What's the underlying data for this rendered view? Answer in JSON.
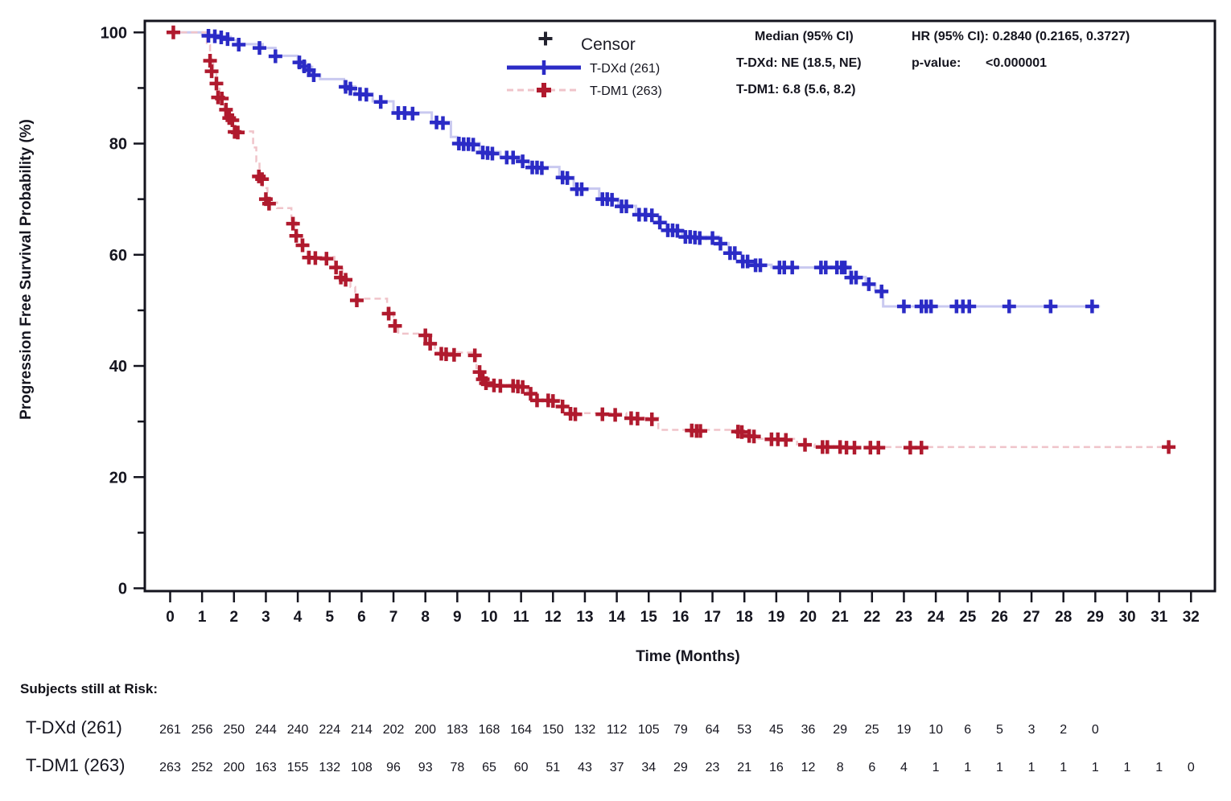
{
  "chart_data": {
    "type": "line",
    "subtype": "kaplan-meier-step",
    "xlabel": "Time (Months)",
    "ylabel": "Progression Free Survival Probability (%)",
    "xlim": [
      0,
      32
    ],
    "ylim": [
      0,
      100
    ],
    "xticks": [
      0,
      1,
      2,
      3,
      4,
      5,
      6,
      7,
      8,
      9,
      10,
      11,
      12,
      13,
      14,
      15,
      16,
      17,
      18,
      19,
      20,
      21,
      22,
      23,
      24,
      25,
      26,
      27,
      28,
      29,
      30,
      31,
      32
    ],
    "yticks_major": [
      0,
      20,
      40,
      60,
      80,
      100
    ],
    "yticks_minor": [
      10,
      30,
      50,
      70,
      90
    ],
    "grid": false,
    "legend": {
      "position": "top-center",
      "censor_symbol": "+",
      "censor_label": "Censor"
    },
    "frame_color": "#14141e",
    "series": [
      {
        "name": "T-DXd (261)",
        "style": "solid",
        "marker_color": "#2b2bc6",
        "line_color": "#c9c9f0",
        "end_time": 29.15,
        "steps": [
          [
            0,
            100
          ],
          [
            1.0,
            99.6
          ],
          [
            1.5,
            99.2
          ],
          [
            1.9,
            98.6
          ],
          [
            2.1,
            97.9
          ],
          [
            2.9,
            97.2
          ],
          [
            3.3,
            95.8
          ],
          [
            4.0,
            94.8
          ],
          [
            4.2,
            93.8
          ],
          [
            4.45,
            92.4
          ],
          [
            4.7,
            91.6
          ],
          [
            5.45,
            90.3
          ],
          [
            5.8,
            89.0
          ],
          [
            6.35,
            87.6
          ],
          [
            7.0,
            85.6
          ],
          [
            8.2,
            83.9
          ],
          [
            8.8,
            81.2
          ],
          [
            9.0,
            80.1
          ],
          [
            9.7,
            78.5
          ],
          [
            10.35,
            77.6
          ],
          [
            11.0,
            76.9
          ],
          [
            11.25,
            75.8
          ],
          [
            12.2,
            74.0
          ],
          [
            12.65,
            71.9
          ],
          [
            13.45,
            70.1
          ],
          [
            14.05,
            68.8
          ],
          [
            14.6,
            67.3
          ],
          [
            15.3,
            65.9
          ],
          [
            15.55,
            64.5
          ],
          [
            16.05,
            63.3
          ],
          [
            17.2,
            62.1
          ],
          [
            17.5,
            60.4
          ],
          [
            17.9,
            58.9
          ],
          [
            18.3,
            58.2
          ],
          [
            18.85,
            57.7
          ],
          [
            21.3,
            56.0
          ],
          [
            21.8,
            54.8
          ],
          [
            22.1,
            53.6
          ],
          [
            22.35,
            50.7
          ]
        ],
        "censors": [
          [
            1.2,
            99.4
          ],
          [
            1.4,
            99.3
          ],
          [
            1.6,
            99.1
          ],
          [
            1.8,
            98.8
          ],
          [
            2.15,
            97.8
          ],
          [
            2.8,
            97.2
          ],
          [
            3.3,
            95.7
          ],
          [
            4.05,
            94.6
          ],
          [
            4.2,
            93.9
          ],
          [
            4.35,
            93.2
          ],
          [
            4.5,
            92.3
          ],
          [
            5.5,
            90.2
          ],
          [
            5.65,
            89.9
          ],
          [
            5.95,
            88.9
          ],
          [
            6.15,
            88.8
          ],
          [
            6.6,
            87.5
          ],
          [
            7.15,
            85.5
          ],
          [
            7.35,
            85.5
          ],
          [
            7.6,
            85.4
          ],
          [
            8.35,
            83.8
          ],
          [
            8.55,
            83.7
          ],
          [
            9.05,
            80.0
          ],
          [
            9.2,
            79.9
          ],
          [
            9.35,
            79.9
          ],
          [
            9.5,
            79.8
          ],
          [
            9.8,
            78.4
          ],
          [
            9.95,
            78.3
          ],
          [
            10.1,
            78.2
          ],
          [
            10.55,
            77.5
          ],
          [
            10.75,
            77.5
          ],
          [
            11.05,
            76.8
          ],
          [
            11.35,
            75.7
          ],
          [
            11.5,
            75.7
          ],
          [
            11.65,
            75.6
          ],
          [
            12.3,
            73.9
          ],
          [
            12.45,
            73.8
          ],
          [
            12.75,
            71.8
          ],
          [
            12.9,
            71.8
          ],
          [
            13.55,
            70.0
          ],
          [
            13.7,
            70.0
          ],
          [
            13.85,
            69.9
          ],
          [
            14.15,
            68.7
          ],
          [
            14.3,
            68.7
          ],
          [
            14.7,
            67.2
          ],
          [
            14.9,
            67.2
          ],
          [
            15.1,
            67.1
          ],
          [
            15.35,
            65.8
          ],
          [
            15.6,
            64.4
          ],
          [
            15.75,
            64.4
          ],
          [
            15.9,
            64.3
          ],
          [
            16.15,
            63.2
          ],
          [
            16.3,
            63.2
          ],
          [
            16.45,
            63.1
          ],
          [
            16.6,
            63.0
          ],
          [
            17.0,
            63.0
          ],
          [
            17.25,
            62.0
          ],
          [
            17.55,
            60.3
          ],
          [
            17.7,
            60.3
          ],
          [
            17.95,
            58.8
          ],
          [
            18.1,
            58.8
          ],
          [
            18.35,
            58.1
          ],
          [
            18.5,
            58.1
          ],
          [
            19.1,
            57.7
          ],
          [
            19.25,
            57.7
          ],
          [
            19.5,
            57.7
          ],
          [
            20.4,
            57.7
          ],
          [
            20.55,
            57.7
          ],
          [
            20.9,
            57.7
          ],
          [
            21.05,
            57.7
          ],
          [
            21.15,
            57.7
          ],
          [
            21.35,
            55.9
          ],
          [
            21.5,
            55.9
          ],
          [
            21.9,
            54.7
          ],
          [
            22.3,
            53.4
          ],
          [
            23.0,
            50.7
          ],
          [
            23.55,
            50.7
          ],
          [
            23.7,
            50.7
          ],
          [
            23.85,
            50.7
          ],
          [
            24.65,
            50.7
          ],
          [
            24.85,
            50.7
          ],
          [
            25.05,
            50.7
          ],
          [
            26.3,
            50.7
          ],
          [
            27.6,
            50.7
          ],
          [
            28.9,
            50.7
          ]
        ]
      },
      {
        "name": "T-DM1 (263)",
        "style": "dashed",
        "marker_color": "#b01a2e",
        "line_color": "#f0c4ca",
        "end_time": 31.45,
        "steps": [
          [
            0,
            100
          ],
          [
            1.15,
            97.7
          ],
          [
            1.25,
            95.2
          ],
          [
            1.35,
            92.8
          ],
          [
            1.45,
            90.6
          ],
          [
            1.55,
            88.4
          ],
          [
            1.7,
            86.4
          ],
          [
            1.85,
            84.4
          ],
          [
            2.0,
            82.2
          ],
          [
            2.6,
            79.3
          ],
          [
            2.7,
            76.8
          ],
          [
            2.8,
            74.3
          ],
          [
            2.9,
            72.0
          ],
          [
            3.05,
            69.4
          ],
          [
            3.35,
            68.4
          ],
          [
            3.8,
            65.9
          ],
          [
            3.95,
            63.7
          ],
          [
            4.1,
            61.9
          ],
          [
            4.3,
            59.6
          ],
          [
            5.15,
            57.9
          ],
          [
            5.4,
            55.7
          ],
          [
            5.65,
            54.2
          ],
          [
            5.8,
            52.1
          ],
          [
            6.8,
            49.7
          ],
          [
            7.0,
            47.4
          ],
          [
            7.15,
            45.8
          ],
          [
            8.1,
            44.2
          ],
          [
            8.3,
            42.4
          ],
          [
            9.6,
            39.6
          ],
          [
            9.75,
            38.0
          ],
          [
            9.95,
            36.6
          ],
          [
            11.2,
            35.2
          ],
          [
            11.45,
            33.9
          ],
          [
            12.25,
            32.9
          ],
          [
            12.5,
            31.5
          ],
          [
            14.3,
            30.7
          ],
          [
            15.3,
            28.5
          ],
          [
            18.0,
            27.5
          ],
          [
            18.4,
            26.9
          ],
          [
            19.65,
            25.9
          ],
          [
            20.2,
            25.4
          ]
        ],
        "censors": [
          [
            0.1,
            100
          ],
          [
            1.25,
            94.9
          ],
          [
            1.3,
            93.0
          ],
          [
            1.45,
            90.8
          ],
          [
            1.5,
            88.3
          ],
          [
            1.62,
            88.1
          ],
          [
            1.75,
            86.1
          ],
          [
            1.85,
            84.6
          ],
          [
            1.95,
            84.2
          ],
          [
            2.02,
            82.1
          ],
          [
            2.12,
            82.0
          ],
          [
            2.78,
            74.1
          ],
          [
            2.88,
            73.6
          ],
          [
            3.0,
            70.0
          ],
          [
            3.1,
            69.2
          ],
          [
            3.85,
            65.6
          ],
          [
            3.95,
            63.4
          ],
          [
            4.15,
            61.7
          ],
          [
            4.35,
            59.5
          ],
          [
            4.55,
            59.4
          ],
          [
            4.9,
            59.3
          ],
          [
            5.2,
            57.7
          ],
          [
            5.35,
            55.9
          ],
          [
            5.5,
            55.5
          ],
          [
            5.85,
            51.8
          ],
          [
            6.85,
            49.4
          ],
          [
            7.05,
            47.2
          ],
          [
            8.0,
            45.5
          ],
          [
            8.15,
            44.0
          ],
          [
            8.5,
            42.2
          ],
          [
            8.65,
            42.1
          ],
          [
            8.9,
            42.0
          ],
          [
            9.55,
            41.9
          ],
          [
            9.7,
            38.9
          ],
          [
            9.8,
            37.6
          ],
          [
            9.9,
            36.9
          ],
          [
            10.15,
            36.5
          ],
          [
            10.35,
            36.4
          ],
          [
            10.75,
            36.4
          ],
          [
            10.9,
            36.3
          ],
          [
            11.05,
            36.2
          ],
          [
            11.3,
            35.0
          ],
          [
            11.5,
            33.8
          ],
          [
            11.85,
            33.8
          ],
          [
            12.0,
            33.7
          ],
          [
            12.3,
            32.7
          ],
          [
            12.55,
            31.4
          ],
          [
            12.7,
            31.3
          ],
          [
            13.55,
            31.3
          ],
          [
            13.95,
            31.2
          ],
          [
            14.45,
            30.6
          ],
          [
            14.65,
            30.5
          ],
          [
            15.1,
            30.4
          ],
          [
            16.35,
            28.4
          ],
          [
            16.5,
            28.3
          ],
          [
            16.62,
            28.3
          ],
          [
            17.8,
            28.2
          ],
          [
            17.92,
            28.1
          ],
          [
            18.15,
            27.4
          ],
          [
            18.3,
            27.3
          ],
          [
            18.85,
            26.8
          ],
          [
            19.05,
            26.8
          ],
          [
            19.3,
            26.7
          ],
          [
            19.9,
            25.8
          ],
          [
            20.45,
            25.4
          ],
          [
            20.6,
            25.4
          ],
          [
            21.0,
            25.4
          ],
          [
            21.2,
            25.3
          ],
          [
            21.45,
            25.3
          ],
          [
            21.95,
            25.3
          ],
          [
            22.2,
            25.3
          ],
          [
            23.2,
            25.3
          ],
          [
            23.55,
            25.3
          ],
          [
            31.3,
            25.4
          ]
        ]
      }
    ],
    "stats": {
      "median_header": "Median (95% CI)",
      "median_lines": [
        "T-DXd: NE (18.5, NE)",
        "T-DM1: 6.8 (5.6, 8.2)"
      ],
      "hr_line": "HR (95% CI): 0.2840 (0.2165, 0.3727)",
      "p_label": "p-value:",
      "p_value": "<0.000001"
    },
    "risk_table": {
      "title": "Subjects still at Risk:",
      "rows": [
        {
          "label": "T-DXd (261)",
          "values": [
            261,
            256,
            250,
            244,
            240,
            224,
            214,
            202,
            200,
            183,
            168,
            164,
            150,
            132,
            112,
            105,
            79,
            64,
            53,
            45,
            36,
            29,
            25,
            19,
            10,
            6,
            5,
            3,
            2,
            0
          ]
        },
        {
          "label": "T-DM1 (263)",
          "values": [
            263,
            252,
            200,
            163,
            155,
            132,
            108,
            96,
            93,
            78,
            65,
            60,
            51,
            43,
            37,
            34,
            29,
            23,
            21,
            16,
            12,
            8,
            6,
            4,
            1,
            1,
            1,
            1,
            1,
            1,
            1,
            1,
            0
          ]
        }
      ]
    }
  }
}
